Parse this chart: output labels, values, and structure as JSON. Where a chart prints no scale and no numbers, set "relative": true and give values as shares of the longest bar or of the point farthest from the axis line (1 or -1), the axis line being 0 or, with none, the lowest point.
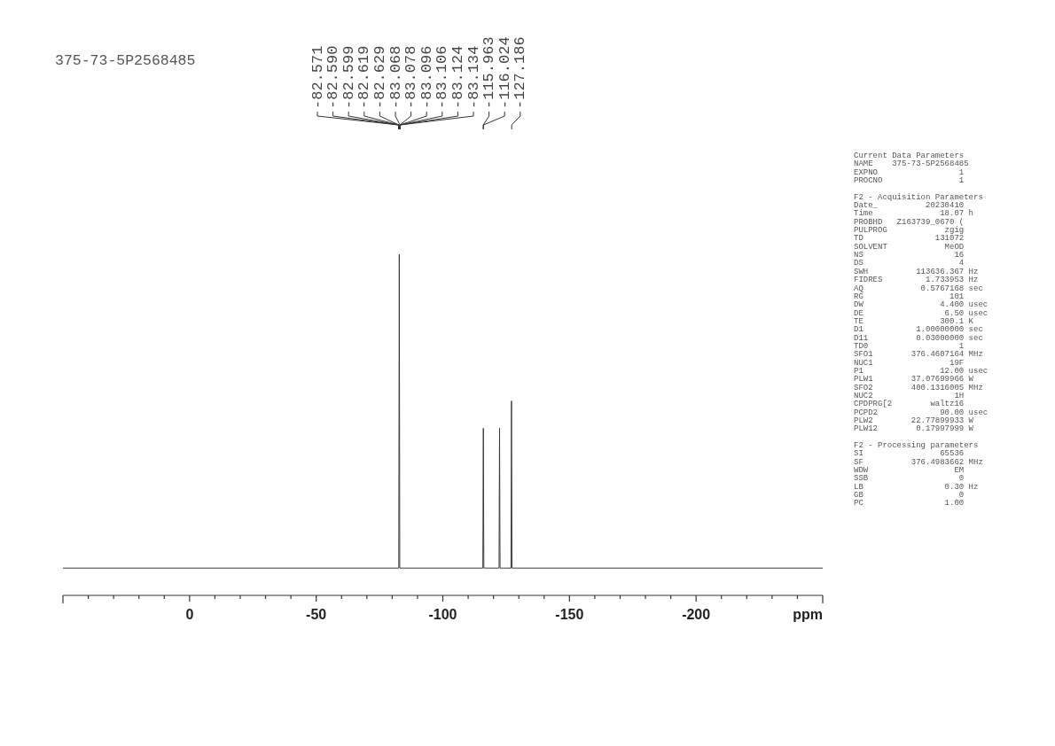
{
  "chart_data": {
    "type": "line",
    "title": "375-73-5P2568485",
    "xlabel": "ppm",
    "x": [
      50,
      -82.6,
      -82.8,
      -83.0,
      -115.8,
      -116.0,
      -116.2,
      -122.2,
      -122.4,
      -122.6,
      -126.9,
      -127.1,
      -127.3,
      -250
    ],
    "values": [
      0.08,
      0.08,
      1,
      0.08,
      0.08,
      0.49,
      0.08,
      0.08,
      0.49,
      0.08,
      0.08,
      0.57,
      0.08,
      0.08
    ],
    "color": "#3a3a3a",
    "relative": true,
    "xlim": [
      50,
      -250
    ],
    "xticks": [
      {
        "value": 50,
        "label": null
      },
      {
        "value": 40,
        "label": null
      },
      {
        "value": 30,
        "label": null
      },
      {
        "value": 20,
        "label": null
      },
      {
        "value": 10,
        "label": null
      },
      0,
      {
        "value": -10,
        "label": null
      },
      {
        "value": -20,
        "label": null
      },
      {
        "value": -30,
        "label": null
      },
      {
        "value": -40,
        "label": null
      },
      -50,
      {
        "value": -60,
        "label": null
      },
      {
        "value": -70,
        "label": null
      },
      {
        "value": -80,
        "label": null
      },
      {
        "value": -90,
        "label": null
      },
      -100,
      {
        "value": -110,
        "label": null
      },
      {
        "value": -120,
        "label": null
      },
      {
        "value": -130,
        "label": null
      },
      {
        "value": -140,
        "label": null
      },
      -150,
      {
        "value": -160,
        "label": null
      },
      {
        "value": -170,
        "label": null
      },
      {
        "value": -180,
        "label": null
      },
      {
        "value": -190,
        "label": null
      },
      -200,
      {
        "value": -210,
        "label": null
      },
      {
        "value": -220,
        "label": null
      },
      {
        "value": -230,
        "label": null
      },
      {
        "value": -240,
        "label": null
      },
      {
        "value": -250,
        "label": null
      }
    ],
    "annotations": [
      {
        "text": "-82.571",
        "x": -82.571
      },
      {
        "text": "-82.590",
        "x": -82.59
      },
      {
        "text": "-82.599",
        "x": -82.599
      },
      {
        "text": "-82.619",
        "x": -82.619
      },
      {
        "text": "-82.629",
        "x": -82.629
      },
      {
        "text": "-83.068",
        "x": -83.068
      },
      {
        "text": "-83.078",
        "x": -83.078
      },
      {
        "text": "-83.096",
        "x": -83.096
      },
      {
        "text": "-83.106",
        "x": -83.106
      },
      {
        "text": "-83.124",
        "x": -83.124
      },
      {
        "text": "-83.134",
        "x": -83.134
      },
      {
        "text": "-115.963",
        "x": -115.963
      },
      {
        "text": "-116.024",
        "x": -116.024
      },
      {
        "text": "-127.186",
        "x": -127.186
      },
      "Current Data Parameters\nNAME    375-73-5P2568485\nEXPNO                 1\nPROCNO                1",
      "F2 - Acquisition Parameters\nDate_          20230410\nTime              18.07 h\nPROBHD   Z163739_0670 (\nPULPROG            zgig\nTD               131072\nSOLVENT            MeOD\nNS                   16\nDS                    4\nSWH          113636.367 Hz\nFIDRES         1.733953 Hz\nAQ            0.5767168 sec\nRG                  101\nDW                4.400 usec\nDE                 6.50 usec\nTE                300.1 K\nD1           1.00000000 sec\nD11          0.03000000 sec\nTD0                   1\nSFO1        376.4607164 MHz\nNUC1                19F\nP1                12.00 usec\nPLW1        37.07699966 W\nSFO2        400.1316005 MHz\nNUC2                 1H\nCPDPRG[2        waltz16\nPCPD2             90.00 usec\nPLW2        22.77899933 W\nPLW12        0.17997999 W",
      "F2 - Processing parameters\nSI                65536\nSF          376.4983662 MHz\nWDW                  EM\nSSB                   0\nLB                 0.30 Hz\nGB                    0\nPC                 1.00"
    ]
  }
}
